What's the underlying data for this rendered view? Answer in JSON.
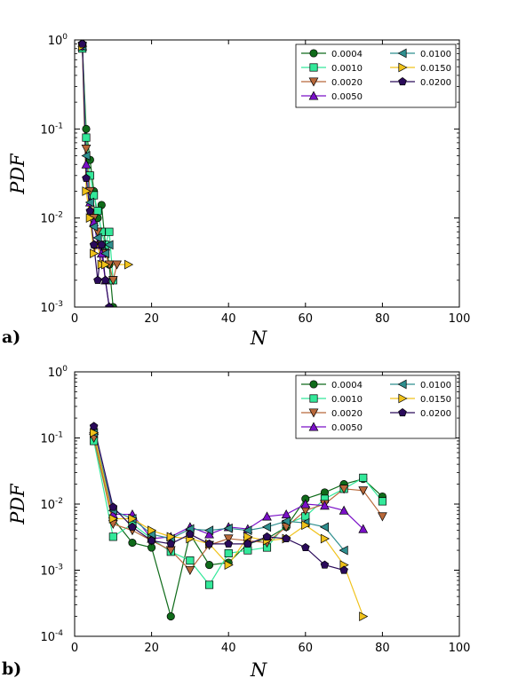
{
  "chart_data": [
    {
      "type": "line",
      "panel_label": "a)",
      "xlabel": "N",
      "ylabel": "PDF",
      "xlim": [
        0,
        100
      ],
      "ylim": [
        0.001,
        1
      ],
      "yscale": "log",
      "x_ticks": [
        "0",
        "20",
        "40",
        "60",
        "80",
        "100"
      ],
      "y_ticks": [
        {
          "base": "10",
          "exp": "-3"
        },
        {
          "base": "10",
          "exp": "-2"
        },
        {
          "base": "10",
          "exp": "-1"
        },
        {
          "base": "10",
          "exp": "0"
        }
      ],
      "legend_position": "top-right",
      "series": [
        {
          "name": "0.0004",
          "color": "#0f6b1a",
          "marker": "circle",
          "x": [
            2,
            3,
            4,
            5,
            6,
            7,
            8,
            9,
            10
          ],
          "y": [
            0.9,
            0.1,
            0.045,
            0.02,
            0.01,
            0.014,
            0.005,
            0.003,
            0.001
          ]
        },
        {
          "name": "0.0010",
          "color": "#33e89a",
          "marker": "square",
          "x": [
            2,
            3,
            4,
            5,
            6,
            7,
            8,
            9,
            10
          ],
          "y": [
            0.8,
            0.08,
            0.03,
            0.018,
            0.012,
            0.007,
            0.005,
            0.007,
            0.002
          ]
        },
        {
          "name": "0.0020",
          "color": "#b8683a",
          "marker": "triangle-down",
          "x": [
            2,
            3,
            4,
            5,
            6,
            7,
            8,
            9,
            10,
            11
          ],
          "y": [
            0.85,
            0.06,
            0.02,
            0.01,
            0.007,
            0.005,
            0.004,
            0.003,
            0.002,
            0.003
          ]
        },
        {
          "name": "0.0050",
          "color": "#7a10c8",
          "marker": "triangle-up",
          "x": [
            2,
            3,
            4,
            5,
            6,
            7,
            8,
            9
          ],
          "y": [
            0.85,
            0.04,
            0.015,
            0.009,
            0.005,
            0.004,
            0.002,
            0.001
          ]
        },
        {
          "name": "0.0100",
          "color": "#2f8f8f",
          "marker": "triangle-left",
          "x": [
            2,
            3,
            4,
            5,
            6,
            7,
            8,
            9
          ],
          "y": [
            0.85,
            0.05,
            0.015,
            0.008,
            0.006,
            0.005,
            0.004,
            0.005
          ]
        },
        {
          "name": "0.0150",
          "color": "#f0c21a",
          "marker": "triangle-right",
          "x": [
            2,
            3,
            4,
            5,
            6,
            7,
            8,
            14
          ],
          "y": [
            0.85,
            0.02,
            0.01,
            0.004,
            0.005,
            0.003,
            0.003,
            0.003
          ]
        },
        {
          "name": "0.0200",
          "color": "#2a0a5a",
          "marker": "pentagon",
          "x": [
            2,
            3,
            4,
            5,
            6,
            7,
            8,
            9
          ],
          "y": [
            0.9,
            0.028,
            0.012,
            0.005,
            0.002,
            0.005,
            0.002,
            0.001
          ]
        }
      ]
    },
    {
      "type": "line",
      "panel_label": "b)",
      "xlabel": "N",
      "ylabel": "PDF",
      "xlim": [
        0,
        100
      ],
      "ylim": [
        0.0001,
        1
      ],
      "yscale": "log",
      "x_ticks": [
        "0",
        "20",
        "40",
        "60",
        "80",
        "100"
      ],
      "y_ticks": [
        {
          "base": "10",
          "exp": "-4"
        },
        {
          "base": "10",
          "exp": "-3"
        },
        {
          "base": "10",
          "exp": "-2"
        },
        {
          "base": "10",
          "exp": "-1"
        },
        {
          "base": "10",
          "exp": "0"
        }
      ],
      "legend_position": "top-right",
      "series": [
        {
          "name": "0.0004",
          "color": "#0f6b1a",
          "marker": "circle",
          "x": [
            5,
            10,
            15,
            20,
            25,
            30,
            35,
            40,
            45,
            50,
            55,
            60,
            65,
            70,
            75,
            80
          ],
          "y": [
            0.1,
            0.006,
            0.0026,
            0.0022,
            0.0002,
            0.0035,
            0.0012,
            0.0013,
            0.0025,
            0.003,
            0.0045,
            0.012,
            0.015,
            0.02,
            0.024,
            0.013
          ]
        },
        {
          "name": "0.0010",
          "color": "#33e89a",
          "marker": "square",
          "x": [
            5,
            10,
            15,
            20,
            25,
            30,
            35,
            40,
            45,
            50,
            55,
            60,
            65,
            70,
            75,
            80
          ],
          "y": [
            0.09,
            0.0032,
            0.005,
            0.003,
            0.0019,
            0.0014,
            0.0006,
            0.0018,
            0.002,
            0.0022,
            0.005,
            0.0065,
            0.012,
            0.017,
            0.025,
            0.011
          ]
        },
        {
          "name": "0.0020",
          "color": "#b8683a",
          "marker": "triangle-down",
          "x": [
            5,
            10,
            15,
            20,
            25,
            30,
            35,
            40,
            45,
            50,
            55,
            60,
            65,
            70,
            75,
            80
          ],
          "y": [
            0.1,
            0.005,
            0.004,
            0.0028,
            0.002,
            0.001,
            0.0024,
            0.003,
            0.0028,
            0.0026,
            0.0045,
            0.008,
            0.01,
            0.017,
            0.016,
            0.0065
          ]
        },
        {
          "name": "0.0050",
          "color": "#7a10c8",
          "marker": "triangle-up",
          "x": [
            5,
            10,
            15,
            20,
            25,
            30,
            35,
            40,
            45,
            50,
            55,
            60,
            65,
            70,
            75
          ],
          "y": [
            0.13,
            0.007,
            0.007,
            0.003,
            0.0032,
            0.0045,
            0.0035,
            0.0045,
            0.0042,
            0.0065,
            0.007,
            0.01,
            0.0095,
            0.008,
            0.0042
          ]
        },
        {
          "name": "0.0100",
          "color": "#2f8f8f",
          "marker": "triangle-left",
          "x": [
            5,
            10,
            15,
            20,
            25,
            30,
            35,
            40,
            45,
            50,
            55,
            60,
            65,
            70
          ],
          "y": [
            0.12,
            0.008,
            0.006,
            0.0035,
            0.003,
            0.0042,
            0.004,
            0.0043,
            0.004,
            0.0045,
            0.0055,
            0.0052,
            0.0045,
            0.002
          ]
        },
        {
          "name": "0.0150",
          "color": "#f0c21a",
          "marker": "triangle-right",
          "x": [
            5,
            10,
            15,
            20,
            25,
            30,
            35,
            40,
            45,
            50,
            55,
            60,
            65,
            70,
            75
          ],
          "y": [
            0.12,
            0.006,
            0.006,
            0.004,
            0.0032,
            0.003,
            0.0025,
            0.0012,
            0.0032,
            0.0028,
            0.003,
            0.0048,
            0.003,
            0.0012,
            0.0002
          ]
        },
        {
          "name": "0.0200",
          "color": "#2a0a5a",
          "marker": "pentagon",
          "x": [
            5,
            10,
            15,
            20,
            25,
            30,
            35,
            40,
            45,
            50,
            55,
            60,
            65,
            70
          ],
          "y": [
            0.15,
            0.009,
            0.0045,
            0.0028,
            0.0025,
            0.0035,
            0.0025,
            0.0025,
            0.0025,
            0.0032,
            0.003,
            0.0022,
            0.0012,
            0.001
          ]
        }
      ]
    }
  ]
}
